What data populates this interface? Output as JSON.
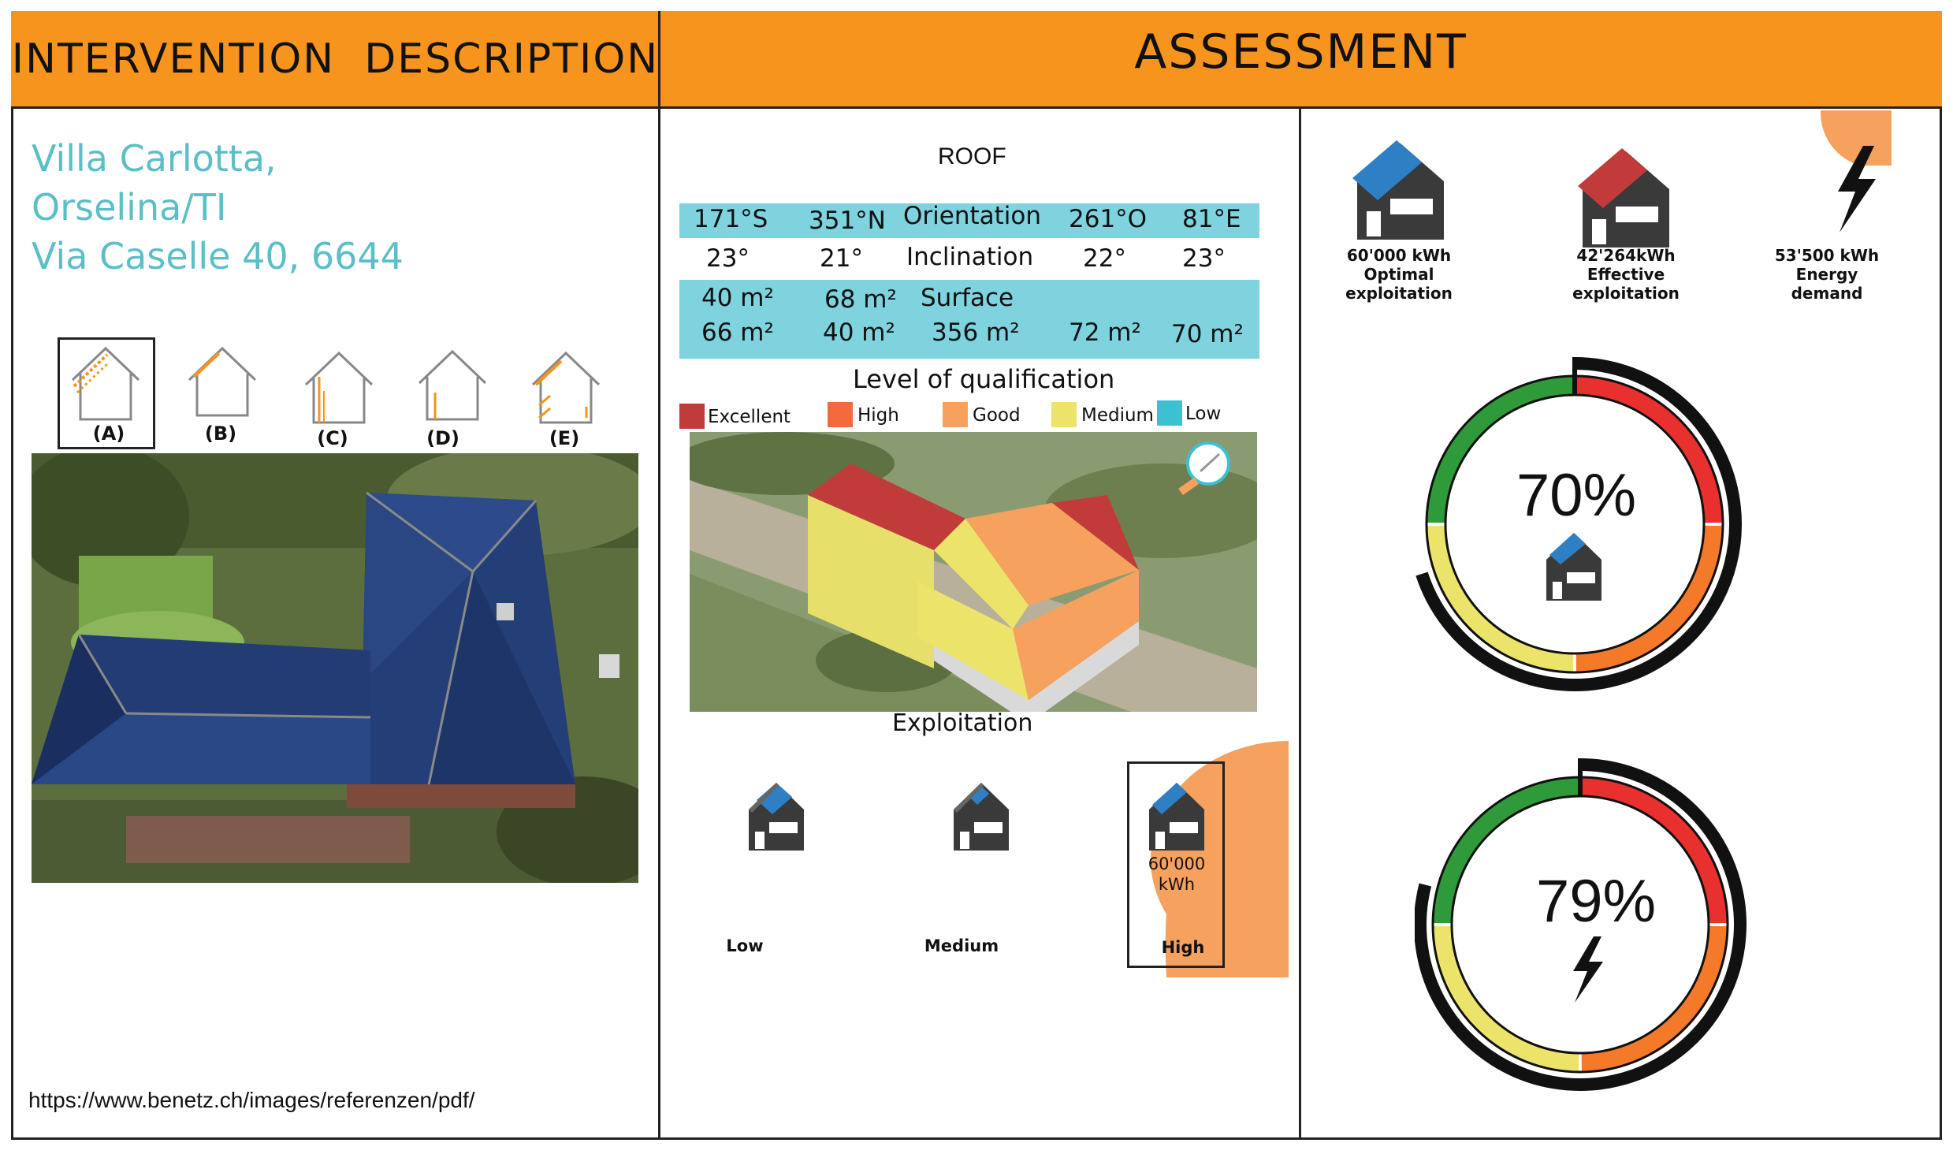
{
  "header": {
    "left_title": "INTERVENTION  DESCRIPTION",
    "right_title": "ASSESSMENT"
  },
  "address": {
    "line1": "Villa Carlotta,",
    "line2": "Orselina/TI",
    "line3": "Via Caselle 40, 6644"
  },
  "intervention_types": [
    "(A)",
    "(B)",
    "(C)",
    "(D)",
    "(E)"
  ],
  "source_url": "https://www.benetz.ch/images/referenzen/pdf/",
  "roof": {
    "title": "ROOF",
    "orientation_label": "Orientation",
    "inclination_label": "Inclination",
    "surface_label": "Surface",
    "orientations": [
      "171°S",
      "351°N",
      "261°O",
      "81°E"
    ],
    "inclinations": [
      "23°",
      "21°",
      "22°",
      "23°"
    ],
    "surfaces_row1": [
      "40 m²",
      "68 m²"
    ],
    "surfaces_row2": [
      "66 m²",
      "40 m²",
      "356 m²",
      "72 m²",
      "70 m²"
    ]
  },
  "qualification": {
    "title": "Level of qualification",
    "levels": [
      {
        "label": "Excellent",
        "color": "#c23b3b"
      },
      {
        "label": "High",
        "color": "#f26a3d"
      },
      {
        "label": "Good",
        "color": "#f7a15e"
      },
      {
        "label": "Medium",
        "color": "#ece46a"
      },
      {
        "label": "Low",
        "color": "#3cc1d3"
      }
    ]
  },
  "exploitation": {
    "title": "Exploitation",
    "options": [
      "Low",
      "Medium",
      "High"
    ],
    "high_value": "60'000",
    "high_unit": "kWh"
  },
  "energy": {
    "optimal": {
      "value": "60'000 kWh",
      "label1": "Optimal",
      "label2": "exploitation"
    },
    "effective": {
      "value": "42'264kWh",
      "label1": "Effective",
      "label2": "exploitation"
    },
    "demand": {
      "value": "53'500 kWh",
      "label1": "Energy",
      "label2": "demand"
    }
  },
  "gauges": [
    {
      "percent": "70%",
      "value": 70,
      "icon": "house-icon"
    },
    {
      "percent": "79%",
      "value": 79,
      "icon": "lightning-icon"
    }
  ],
  "colors": {
    "header_orange": "#f7941d",
    "address_teal": "#5bbfc7",
    "table_band": "#7fd3de",
    "gauge_red": "#e8302e",
    "gauge_orange": "#f47a2a",
    "gauge_yellow": "#ece46a",
    "gauge_green": "#2f9a3a"
  }
}
